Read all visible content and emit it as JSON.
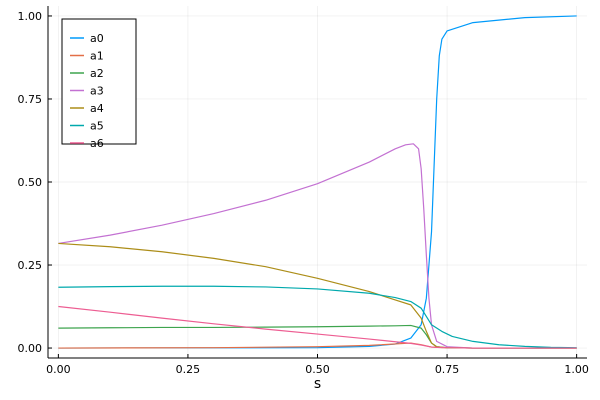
{
  "chart_data": {
    "type": "line",
    "xlabel": "s",
    "ylabel": "",
    "xlim": [
      -0.02,
      1.02
    ],
    "ylim": [
      -0.03,
      1.03
    ],
    "xticks": [
      0.0,
      0.25,
      0.5,
      0.75,
      1.0
    ],
    "xtick_labels": [
      "0.00",
      "0.25",
      "0.50",
      "0.75",
      "1.00"
    ],
    "yticks": [
      0.0,
      0.25,
      0.5,
      0.75,
      1.0
    ],
    "ytick_labels": [
      "0.00",
      "0.25",
      "0.50",
      "0.75",
      "1.00"
    ],
    "grid": true,
    "legend_position": "top-left",
    "series": [
      {
        "name": "a0",
        "color": "#009AFA",
        "x": [
          0,
          0.5,
          0.6,
          0.65,
          0.68,
          0.7,
          0.71,
          0.72,
          0.725,
          0.73,
          0.735,
          0.74,
          0.75,
          0.8,
          0.9,
          1.0
        ],
        "y": [
          0,
          0.001,
          0.005,
          0.012,
          0.03,
          0.07,
          0.15,
          0.35,
          0.55,
          0.75,
          0.88,
          0.93,
          0.955,
          0.98,
          0.995,
          1.0
        ]
      },
      {
        "name": "a1",
        "color": "#E36F47",
        "x": [
          0,
          0.3,
          0.5,
          0.6,
          0.68,
          0.7,
          0.72,
          0.74,
          0.8,
          1.0
        ],
        "y": [
          0,
          0.001,
          0.004,
          0.008,
          0.015,
          0.01,
          0.003,
          0.001,
          0,
          0
        ]
      },
      {
        "name": "a2",
        "color": "#3EA44E",
        "x": [
          0,
          0.1,
          0.2,
          0.3,
          0.4,
          0.5,
          0.6,
          0.65,
          0.68,
          0.7,
          0.71,
          0.72,
          0.73,
          0.75,
          0.8,
          1.0
        ],
        "y": [
          0.06,
          0.061,
          0.062,
          0.062,
          0.063,
          0.064,
          0.066,
          0.067,
          0.068,
          0.06,
          0.04,
          0.015,
          0.004,
          0.001,
          0,
          0
        ]
      },
      {
        "name": "a3",
        "color": "#C371D2",
        "x": [
          0,
          0.1,
          0.2,
          0.3,
          0.4,
          0.5,
          0.6,
          0.65,
          0.67,
          0.685,
          0.695,
          0.7,
          0.705,
          0.71,
          0.715,
          0.72,
          0.73,
          0.75,
          0.8,
          1.0
        ],
        "y": [
          0.315,
          0.34,
          0.37,
          0.405,
          0.445,
          0.495,
          0.56,
          0.6,
          0.612,
          0.615,
          0.6,
          0.54,
          0.42,
          0.28,
          0.15,
          0.07,
          0.02,
          0.004,
          0,
          0
        ]
      },
      {
        "name": "a4",
        "color": "#AC8D18",
        "x": [
          0,
          0.1,
          0.2,
          0.3,
          0.4,
          0.5,
          0.6,
          0.65,
          0.68,
          0.7,
          0.71,
          0.72,
          0.73,
          0.75,
          0.8,
          1.0
        ],
        "y": [
          0.315,
          0.305,
          0.29,
          0.27,
          0.245,
          0.21,
          0.17,
          0.145,
          0.13,
          0.09,
          0.05,
          0.015,
          0.004,
          0.001,
          0,
          0
        ]
      },
      {
        "name": "a5",
        "color": "#00A9AD",
        "x": [
          0,
          0.1,
          0.2,
          0.3,
          0.4,
          0.5,
          0.6,
          0.65,
          0.68,
          0.7,
          0.71,
          0.72,
          0.74,
          0.76,
          0.8,
          0.85,
          0.9,
          0.95,
          1.0
        ],
        "y": [
          0.183,
          0.185,
          0.186,
          0.186,
          0.184,
          0.178,
          0.165,
          0.152,
          0.14,
          0.12,
          0.095,
          0.07,
          0.05,
          0.035,
          0.02,
          0.01,
          0.005,
          0.002,
          0.001
        ]
      },
      {
        "name": "a6",
        "color": "#ED5D92",
        "x": [
          0,
          0.1,
          0.2,
          0.3,
          0.4,
          0.5,
          0.6,
          0.65,
          0.68,
          0.7,
          0.72,
          0.75,
          0.8,
          1.0
        ],
        "y": [
          0.125,
          0.108,
          0.09,
          0.073,
          0.057,
          0.042,
          0.027,
          0.019,
          0.014,
          0.009,
          0.003,
          0.001,
          0,
          0
        ]
      }
    ]
  }
}
